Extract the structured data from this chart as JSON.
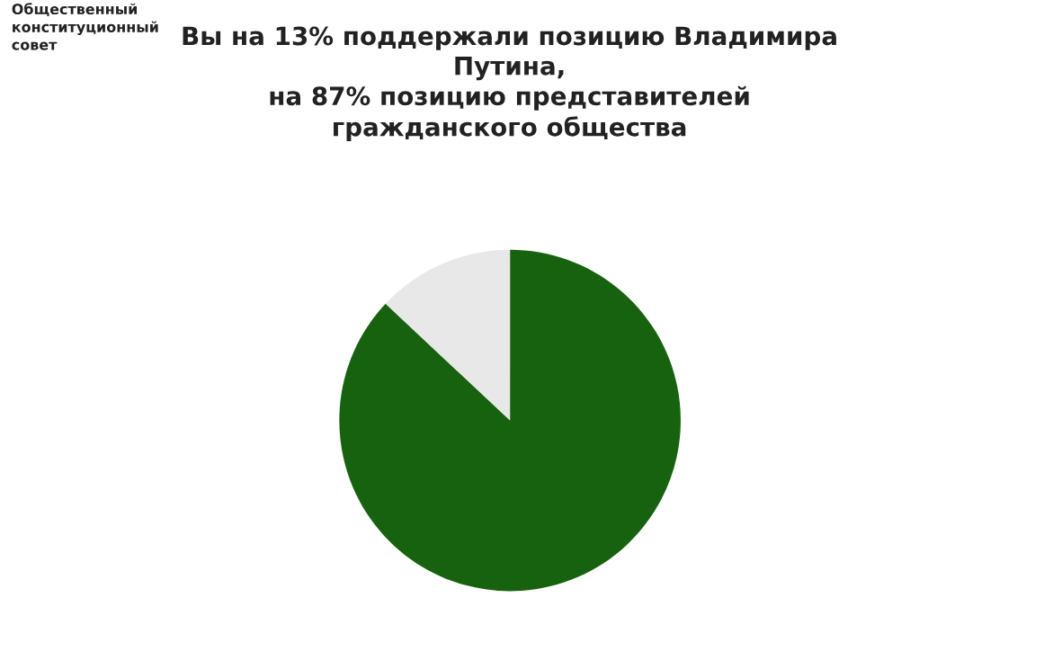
{
  "chart_data": {
    "type": "pie",
    "title": "Вы на 13% поддержали позицию Владимира\nПутина,\nна 87% позицию представителей\nгражданского общества",
    "annotations": [
      "Общественный\nконституционный\nсовет"
    ],
    "categories": [
      null,
      null
    ],
    "values": [
      87,
      13
    ],
    "colors": [
      "#17620f",
      "#e8e8e8"
    ]
  }
}
